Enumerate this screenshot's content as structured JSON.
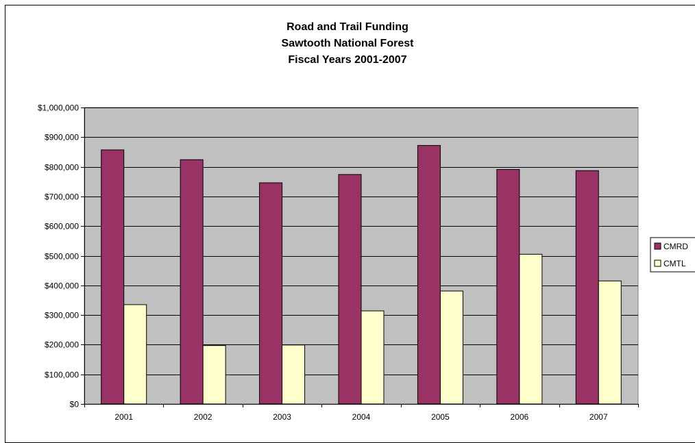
{
  "chart_data": {
    "type": "bar",
    "title_lines": [
      "Road and Trail Funding",
      "Sawtooth National Forest",
      "Fiscal Years 2001-2007"
    ],
    "categories": [
      "2001",
      "2002",
      "2003",
      "2004",
      "2005",
      "2006",
      "2007"
    ],
    "series": [
      {
        "name": "CMRD",
        "color": "#993366",
        "values": [
          857000,
          824000,
          746000,
          774000,
          872000,
          791000,
          787000
        ]
      },
      {
        "name": "CMTL",
        "color": "#FFFFCC",
        "values": [
          335000,
          197000,
          199000,
          314000,
          381000,
          505000,
          415000
        ]
      }
    ],
    "ylim": [
      0,
      1000000
    ],
    "y_ticks": [
      0,
      100000,
      200000,
      300000,
      400000,
      500000,
      600000,
      700000,
      800000,
      900000,
      1000000
    ],
    "y_tick_labels": [
      "$0",
      "$100,000",
      "$200,000",
      "$300,000",
      "$400,000",
      "$500,000",
      "$600,000",
      "$700,000",
      "$800,000",
      "$900,000",
      "$1,000,000"
    ],
    "grid": true,
    "plot_background": "#C0C0C0",
    "legend_position": "right"
  }
}
